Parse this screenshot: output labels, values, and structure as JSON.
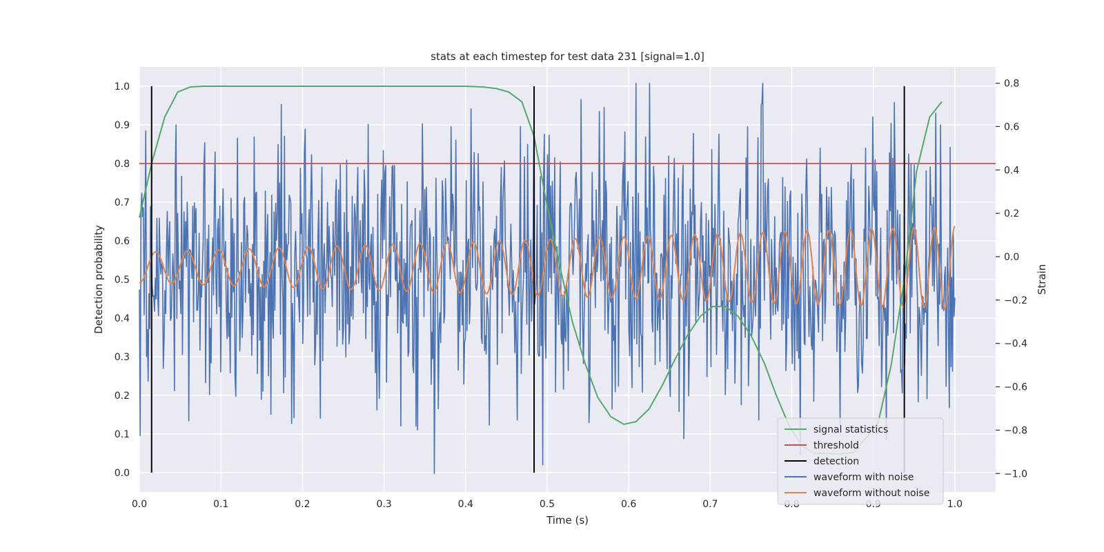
{
  "chart_data": {
    "type": "line",
    "title": "stats at each timestep for test data 231 [signal=1.0]",
    "xlabel": "Time (s)",
    "ylabel": "Detection probability",
    "y2label": "Strain",
    "xlim": [
      0.0,
      1.05
    ],
    "ylim": [
      -0.05,
      1.05
    ],
    "y2lim": [
      -1.085,
      0.875
    ],
    "x_ticks": [
      "0.0",
      "0.1",
      "0.2",
      "0.3",
      "0.4",
      "0.5",
      "0.6",
      "0.7",
      "0.8",
      "0.9",
      "1.0"
    ],
    "y_ticks": [
      "0.0",
      "0.1",
      "0.2",
      "0.3",
      "0.4",
      "0.5",
      "0.6",
      "0.7",
      "0.8",
      "0.9",
      "1.0"
    ],
    "y2_ticks": [
      "−1.0",
      "−0.8",
      "−0.6",
      "−0.4",
      "−0.2",
      "0.0",
      "0.2",
      "0.4",
      "0.6",
      "0.8"
    ],
    "grid": true,
    "legend_position": "lower-right",
    "colors": {
      "signal_statistics": "#55a868",
      "threshold": "#c44e52",
      "detection": "#000000",
      "waveform_with_noise": "#4c72b0",
      "waveform_without_noise": "#dd8452",
      "background": "#eaeaf2",
      "grid": "#ffffff"
    },
    "series": [
      {
        "name": "signal statistics",
        "axis": "left",
        "x": [
          0.0,
          0.015,
          0.031,
          0.047,
          0.062,
          0.078,
          0.094,
          0.2,
          0.3,
          0.4,
          0.422,
          0.438,
          0.453,
          0.469,
          0.484,
          0.5,
          0.516,
          0.531,
          0.547,
          0.562,
          0.578,
          0.594,
          0.609,
          0.625,
          0.641,
          0.656,
          0.672,
          0.688,
          0.703,
          0.719,
          0.734,
          0.75,
          0.766,
          0.781,
          0.797,
          0.812,
          0.828,
          0.844,
          0.859,
          0.875,
          0.891,
          0.906,
          0.922,
          0.938,
          0.953,
          0.969,
          0.984
        ],
        "y": [
          0.66,
          0.8,
          0.92,
          0.985,
          0.998,
          1.0,
          1.0,
          1.0,
          1.0,
          1.0,
          0.998,
          0.994,
          0.985,
          0.96,
          0.87,
          0.69,
          0.53,
          0.39,
          0.28,
          0.195,
          0.145,
          0.125,
          0.132,
          0.165,
          0.225,
          0.29,
          0.355,
          0.405,
          0.43,
          0.43,
          0.405,
          0.355,
          0.285,
          0.2,
          0.12,
          0.07,
          0.05,
          0.05,
          0.048,
          0.052,
          0.09,
          0.13,
          0.28,
          0.5,
          0.78,
          0.92,
          0.96
        ]
      },
      {
        "name": "threshold",
        "axis": "left",
        "x": [
          0.0,
          1.05
        ],
        "y": [
          0.8,
          0.8
        ]
      },
      {
        "name": "detection",
        "axis": "left",
        "x": [
          0.015,
          0.484,
          0.938
        ],
        "y_range": [
          0.0,
          1.0
        ]
      },
      {
        "name": "waveform with noise",
        "axis": "right",
        "x_range": [
          0.0,
          1.0
        ],
        "points": 1024,
        "y_range": [
          -1.0,
          0.8
        ]
      },
      {
        "name": "waveform without noise",
        "axis": "right",
        "x_range": [
          0.0,
          1.0
        ],
        "frequency_start_hz": 25,
        "frequency_end_hz": 40,
        "amplitude_start": 0.07,
        "amplitude_end": 0.19,
        "offset": -0.05
      }
    ],
    "legend": [
      "signal statistics",
      "threshold",
      "detection",
      "waveform with noise",
      "waveform without noise"
    ]
  }
}
